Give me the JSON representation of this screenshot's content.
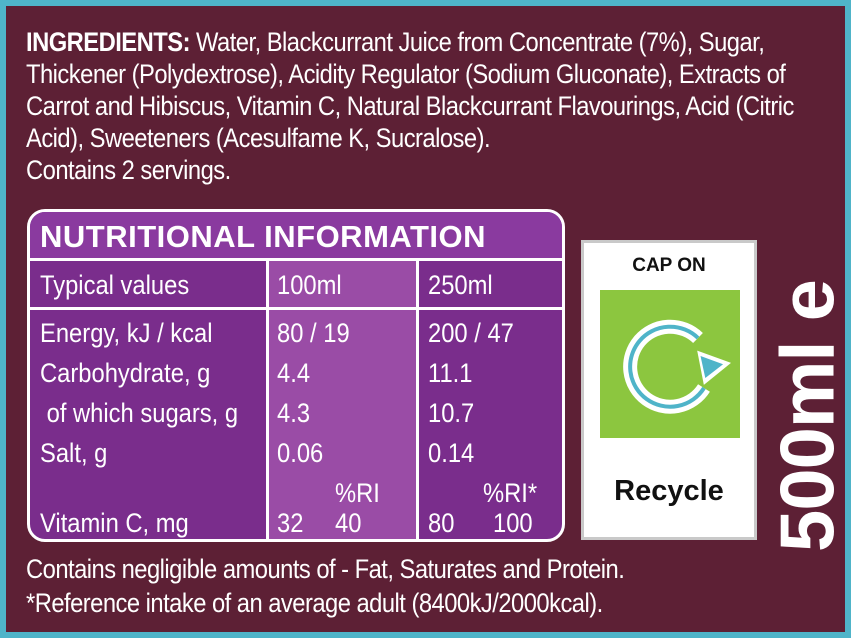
{
  "ingredients": {
    "heading": "INGREDIENTS:",
    "text": " Water, Blackcurrant Juice from Concentrate (7%), Sugar, Thickener (Polydextrose), Acidity Regulator (Sodium Gluconate), Extracts of Carrot and Hibiscus, Vitamin C, Natural Blackcurrant Flavourings, Acid (Citric Acid), Sweeteners (Acesulfame K, Sucralose).",
    "servings": "Contains 2 servings."
  },
  "nutrition": {
    "title": "NUTRITIONAL INFORMATION",
    "headers": [
      "Typical values",
      "100ml",
      "250ml"
    ],
    "rows": [
      {
        "name": "Energy, kJ / kcal",
        "per100": "80 / 19",
        "per250": "200 / 47"
      },
      {
        "name": "Carbohydrate, g",
        "per100": "4.4",
        "per250": "11.1"
      },
      {
        "name": " of which sugars, g",
        "per100": "4.3",
        "per250": "10.7"
      },
      {
        "name": "Salt, g",
        "per100": "0.06",
        "per250": "0.14"
      }
    ],
    "ri_header_100": "%RI",
    "ri_header_250": "%RI*",
    "vitamin": {
      "name": "Vitamin C, mg",
      "val100": "32",
      "ri100": "40",
      "val250": "80",
      "ri250": "100"
    }
  },
  "recycle": {
    "cap_text": "CAP ON",
    "label": "Recycle",
    "icon": "recycle-arrow-icon",
    "color": "#8cc63f"
  },
  "volume": "500ml e",
  "footer": {
    "line1": "Contains negligible amounts of - Fat, Saturates and Protein.",
    "line2": "*Reference intake of an average adult (8400kJ/2000kcal)."
  },
  "colors": {
    "label_bg": "#5d2035",
    "table_bg": "#7a2d8c",
    "frame": "#4fb4c9"
  }
}
